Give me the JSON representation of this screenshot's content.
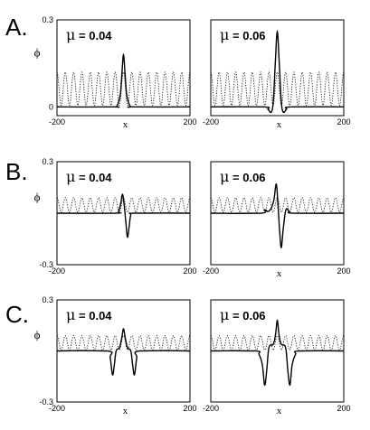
{
  "rows": [
    {
      "label": "A.",
      "ylabel": "ϕ"
    },
    {
      "label": "B.",
      "ylabel": "ϕ"
    },
    {
      "label": "C.",
      "ylabel": "ϕ"
    }
  ],
  "chart_data": [
    {
      "type": "line",
      "row": "A",
      "mu_symbol": "μ",
      "mu_text": " = 0.04",
      "xlabel": "x",
      "ylabel": "ϕ",
      "xticks": [
        "-200",
        "200"
      ],
      "yticks": [
        "0.3",
        "0"
      ],
      "xlim": [
        -200,
        200
      ],
      "ylim": [
        -0.03,
        0.3
      ],
      "series": [
        {
          "style": "solid",
          "x": [
            -200,
            -30,
            -20,
            -10,
            -5,
            0,
            5,
            10,
            20,
            30,
            200
          ],
          "y": [
            0,
            0,
            0.003,
            0.04,
            0.11,
            0.18,
            0.11,
            0.04,
            0.003,
            0,
            0
          ]
        },
        {
          "style": "dotted",
          "kind": "periodic",
          "period": 25,
          "min": 0.005,
          "max": 0.12,
          "x_range": [
            -200,
            200
          ]
        }
      ]
    },
    {
      "type": "line",
      "row": "A",
      "mu_symbol": "μ",
      "mu_text": " = 0.06",
      "xlabel": "x",
      "ylabel": "",
      "xticks": [
        "-200",
        "200"
      ],
      "yticks": [],
      "xlim": [
        -200,
        200
      ],
      "ylim": [
        -0.03,
        0.3
      ],
      "series": [
        {
          "style": "solid",
          "x": [
            -200,
            -40,
            -28,
            -18,
            -12,
            -6,
            0,
            6,
            12,
            18,
            28,
            40,
            200
          ],
          "y": [
            0,
            0,
            -0.008,
            -0.018,
            0.02,
            0.15,
            0.26,
            0.15,
            0.02,
            -0.018,
            -0.008,
            0,
            0
          ]
        },
        {
          "style": "dotted",
          "kind": "periodic",
          "period": 25,
          "min": 0.005,
          "max": 0.12,
          "x_range": [
            -200,
            200
          ]
        }
      ]
    },
    {
      "type": "line",
      "row": "B",
      "mu_symbol": "μ",
      "mu_text": " = 0.04",
      "xlabel": "",
      "ylabel": "ϕ",
      "xticks": [
        "-200",
        "200"
      ],
      "yticks": [
        "0.3",
        "-0.3"
      ],
      "xlim": [
        -200,
        200
      ],
      "ylim": [
        -0.3,
        0.3
      ],
      "series": [
        {
          "style": "solid",
          "x": [
            -200,
            -25,
            -15,
            -8,
            -3,
            2,
            7,
            12,
            17,
            22,
            32,
            200
          ],
          "y": [
            0,
            0,
            0.01,
            0.06,
            0.11,
            0.05,
            -0.05,
            -0.14,
            -0.08,
            -0.01,
            0,
            0
          ]
        },
        {
          "style": "dotted",
          "kind": "periodic",
          "period": 25,
          "min": 0.005,
          "max": 0.09,
          "x_range": [
            -200,
            200
          ]
        }
      ]
    },
    {
      "type": "line",
      "row": "B",
      "mu_symbol": "μ",
      "mu_text": " = 0.06",
      "xlabel": "x",
      "ylabel": "",
      "xticks": [
        "-200",
        "200"
      ],
      "yticks": [],
      "xlim": [
        -200,
        200
      ],
      "ylim": [
        -0.3,
        0.3
      ],
      "series": [
        {
          "style": "solid",
          "x": [
            -200,
            -50,
            -38,
            -28,
            -18,
            -10,
            -3,
            2,
            7,
            12,
            18,
            26,
            36,
            48,
            200
          ],
          "y": [
            0,
            0,
            0.02,
            0.01,
            0.03,
            0.08,
            0.17,
            0.05,
            -0.1,
            -0.2,
            -0.09,
            0.02,
            0.01,
            0,
            0
          ]
        },
        {
          "style": "dotted",
          "kind": "periodic",
          "period": 25,
          "min": 0.005,
          "max": 0.09,
          "x_range": [
            -200,
            200
          ]
        }
      ]
    },
    {
      "type": "line",
      "row": "C",
      "mu_symbol": "μ",
      "mu_text": " = 0.04",
      "xlabel": "x",
      "ylabel": "ϕ",
      "xticks": [
        "-200",
        "200"
      ],
      "yticks": [
        "0.3",
        "-0.3"
      ],
      "xlim": [
        -200,
        200
      ],
      "ylim": [
        -0.3,
        0.3
      ],
      "series": [
        {
          "style": "solid",
          "x": [
            -200,
            -48,
            -40,
            -33,
            -28,
            -22,
            -12,
            -5,
            0,
            5,
            12,
            22,
            28,
            33,
            40,
            48,
            200
          ],
          "y": [
            0,
            0,
            -0.04,
            -0.14,
            -0.09,
            0,
            0.02,
            0.08,
            0.13,
            0.08,
            0.02,
            0,
            -0.09,
            -0.14,
            -0.04,
            0,
            0
          ]
        },
        {
          "style": "dotted",
          "kind": "periodic",
          "period": 25,
          "min": 0.005,
          "max": 0.09,
          "x_range": [
            -200,
            200
          ]
        }
      ]
    },
    {
      "type": "line",
      "row": "C",
      "mu_symbol": "μ",
      "mu_text": " = 0.06",
      "xlabel": "x",
      "ylabel": "",
      "xticks": [
        "-200",
        "200"
      ],
      "yticks": [],
      "xlim": [
        -200,
        200
      ],
      "ylim": [
        -0.3,
        0.3
      ],
      "series": [
        {
          "style": "solid",
          "x": [
            -200,
            -65,
            -55,
            -45,
            -38,
            -32,
            -25,
            -12,
            -5,
            0,
            5,
            12,
            25,
            32,
            38,
            45,
            55,
            65,
            200
          ],
          "y": [
            0,
            0,
            -0.02,
            -0.08,
            -0.2,
            -0.12,
            0.02,
            0.04,
            0.1,
            0.18,
            0.1,
            0.04,
            0.02,
            -0.12,
            -0.2,
            -0.08,
            -0.02,
            0,
            0
          ]
        },
        {
          "style": "dotted",
          "kind": "periodic",
          "period": 25,
          "min": 0.005,
          "max": 0.09,
          "x_range": [
            -200,
            200
          ]
        }
      ]
    }
  ]
}
